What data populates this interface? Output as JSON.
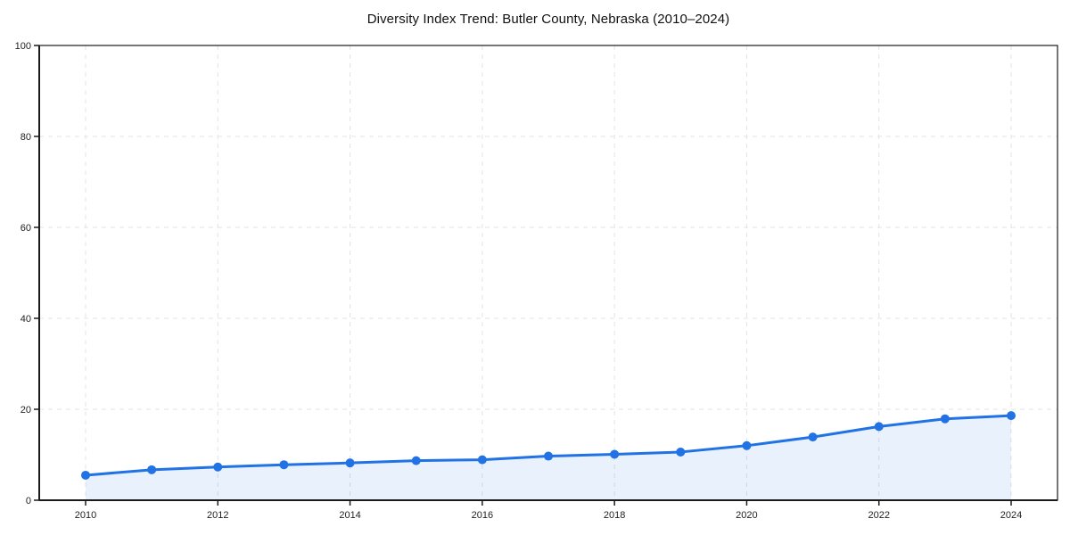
{
  "chart_data": {
    "type": "line",
    "title": "Diversity Index Trend: Butler County, Nebraska (2010–2024)",
    "x": [
      2010,
      2011,
      2012,
      2013,
      2014,
      2015,
      2016,
      2017,
      2018,
      2019,
      2020,
      2021,
      2022,
      2023,
      2024
    ],
    "series": [
      {
        "values": [
          5.5,
          6.7,
          7.3,
          7.8,
          8.2,
          8.7,
          8.9,
          9.7,
          10.1,
          10.6,
          12.0,
          13.9,
          16.2,
          17.9,
          18.6
        ]
      }
    ],
    "xticks": [
      2010,
      2012,
      2014,
      2016,
      2018,
      2020,
      2022,
      2024
    ],
    "yticks": [
      0,
      20,
      40,
      60,
      80,
      100
    ],
    "xlabel": "",
    "ylabel": "",
    "ylim": [
      0,
      100
    ],
    "grid": true,
    "grid_style": "dashed",
    "legend": "none",
    "colors": {
      "line": "#2172e5",
      "marker": "#2172e5",
      "area_fill": "rgba(33,114,229,0.10)",
      "gridline": "#e3e3e3",
      "spine": "#1a1a1a",
      "tick_label": "#222222",
      "title_text": "#111111",
      "background": "#ffffff"
    }
  }
}
